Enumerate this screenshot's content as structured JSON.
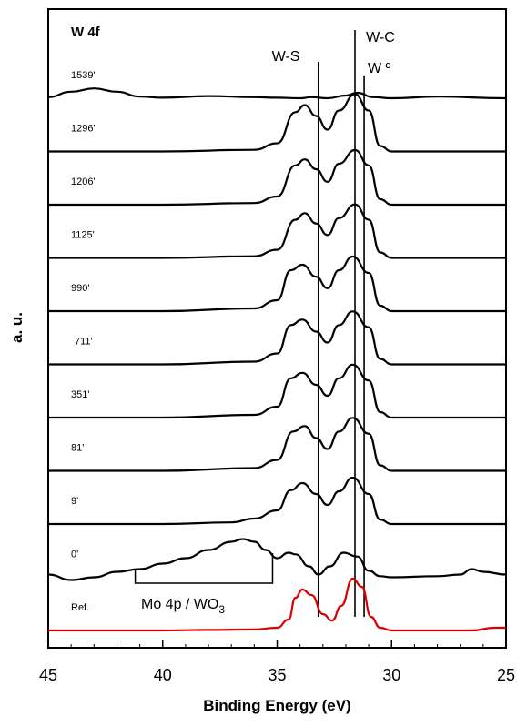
{
  "chart_data": {
    "type": "line",
    "title": "W 4f",
    "xlabel": "Binding Energy (eV)",
    "ylabel": "a. u.",
    "xlim": [
      45,
      25
    ],
    "x_reversed": true,
    "xticks": [
      45,
      40,
      35,
      30,
      25
    ],
    "y_ticks_shown": false,
    "grid": false,
    "reference_lines": [
      {
        "label": "W-S",
        "x": 33.2
      },
      {
        "label": "W-C",
        "x": 31.6
      },
      {
        "label": "W º",
        "x": 31.2
      }
    ],
    "bracket_annotation": {
      "label_main": "Mo 4p / WO",
      "label_sub": "3",
      "x_range": [
        41.2,
        35.2
      ]
    },
    "series": [
      {
        "name": "1539'",
        "color": "#000000",
        "offset": 10,
        "points": [
          [
            45,
            0.02
          ],
          [
            44,
            0.12
          ],
          [
            43,
            0.18
          ],
          [
            42,
            0.12
          ],
          [
            41,
            0.03
          ],
          [
            40,
            0.01
          ],
          [
            38,
            0.04
          ],
          [
            36,
            0.02
          ],
          [
            35,
            0.01
          ],
          [
            34,
            0.0
          ],
          [
            33.5,
            0.02
          ],
          [
            32.8,
            0.0
          ],
          [
            32,
            0.05
          ],
          [
            31.5,
            0.1
          ],
          [
            30.8,
            0.02
          ],
          [
            30,
            0.0
          ],
          [
            28,
            0.03
          ],
          [
            25,
            0.0
          ]
        ]
      },
      {
        "name": "1296'",
        "color": "#000000",
        "offset": 9,
        "points": [
          [
            45,
            0.0
          ],
          [
            40,
            0.0
          ],
          [
            36,
            0.03
          ],
          [
            35,
            0.15
          ],
          [
            34.2,
            0.72
          ],
          [
            33.8,
            0.85
          ],
          [
            33.3,
            0.65
          ],
          [
            32.8,
            0.4
          ],
          [
            32.3,
            0.75
          ],
          [
            31.6,
            1.05
          ],
          [
            31.0,
            0.75
          ],
          [
            30.5,
            0.1
          ],
          [
            30,
            0.0
          ],
          [
            25,
            0.0
          ]
        ]
      },
      {
        "name": "1206'",
        "color": "#000000",
        "offset": 8,
        "points": [
          [
            45,
            0.0
          ],
          [
            40,
            0.0
          ],
          [
            36,
            0.03
          ],
          [
            35,
            0.15
          ],
          [
            34.2,
            0.72
          ],
          [
            33.8,
            0.83
          ],
          [
            33.3,
            0.65
          ],
          [
            32.8,
            0.42
          ],
          [
            32.3,
            0.75
          ],
          [
            31.6,
            1.0
          ],
          [
            31.0,
            0.72
          ],
          [
            30.5,
            0.1
          ],
          [
            30,
            0.0
          ],
          [
            25,
            0.0
          ]
        ]
      },
      {
        "name": "1125'",
        "color": "#000000",
        "offset": 7,
        "points": [
          [
            45,
            0.0
          ],
          [
            40,
            0.0
          ],
          [
            36,
            0.03
          ],
          [
            35,
            0.15
          ],
          [
            34.2,
            0.7
          ],
          [
            33.8,
            0.82
          ],
          [
            33.3,
            0.63
          ],
          [
            32.8,
            0.42
          ],
          [
            32.3,
            0.73
          ],
          [
            31.6,
            0.98
          ],
          [
            31.0,
            0.7
          ],
          [
            30.5,
            0.1
          ],
          [
            30,
            0.0
          ],
          [
            25,
            0.0
          ]
        ]
      },
      {
        "name": "990'",
        "color": "#000000",
        "offset": 6,
        "points": [
          [
            45,
            0.0
          ],
          [
            40,
            0.0
          ],
          [
            36,
            0.05
          ],
          [
            35,
            0.2
          ],
          [
            34.4,
            0.75
          ],
          [
            33.9,
            0.85
          ],
          [
            33.3,
            0.63
          ],
          [
            32.8,
            0.42
          ],
          [
            32.3,
            0.75
          ],
          [
            31.7,
            1.0
          ],
          [
            31.0,
            0.7
          ],
          [
            30.5,
            0.1
          ],
          [
            30,
            0.0
          ],
          [
            25,
            0.0
          ]
        ]
      },
      {
        "name": "711'",
        "color": "#000000",
        "offset": 5,
        "points": [
          [
            45,
            0.0
          ],
          [
            40,
            0.0
          ],
          [
            36,
            0.05
          ],
          [
            35,
            0.2
          ],
          [
            34.4,
            0.72
          ],
          [
            33.9,
            0.82
          ],
          [
            33.3,
            0.6
          ],
          [
            32.8,
            0.4
          ],
          [
            32.3,
            0.72
          ],
          [
            31.7,
            0.97
          ],
          [
            31.0,
            0.68
          ],
          [
            30.5,
            0.1
          ],
          [
            30,
            0.0
          ],
          [
            25,
            0.0
          ]
        ]
      },
      {
        "name": "351'",
        "color": "#000000",
        "offset": 4,
        "points": [
          [
            45,
            0.0
          ],
          [
            40,
            0.0
          ],
          [
            36,
            0.05
          ],
          [
            35,
            0.2
          ],
          [
            34.4,
            0.72
          ],
          [
            33.9,
            0.82
          ],
          [
            33.3,
            0.6
          ],
          [
            32.8,
            0.4
          ],
          [
            32.3,
            0.72
          ],
          [
            31.7,
            0.97
          ],
          [
            31.0,
            0.68
          ],
          [
            30.5,
            0.1
          ],
          [
            30,
            0.0
          ],
          [
            25,
            0.0
          ]
        ]
      },
      {
        "name": "81'",
        "color": "#000000",
        "offset": 3,
        "points": [
          [
            45,
            0.0
          ],
          [
            40,
            0.0
          ],
          [
            36,
            0.05
          ],
          [
            35,
            0.2
          ],
          [
            34.3,
            0.72
          ],
          [
            33.8,
            0.82
          ],
          [
            33.3,
            0.6
          ],
          [
            32.8,
            0.4
          ],
          [
            32.3,
            0.72
          ],
          [
            31.7,
            0.97
          ],
          [
            31.0,
            0.68
          ],
          [
            30.5,
            0.1
          ],
          [
            30,
            0.0
          ],
          [
            25,
            0.0
          ]
        ]
      },
      {
        "name": "9'",
        "color": "#000000",
        "offset": 2,
        "points": [
          [
            45,
            0.0
          ],
          [
            40,
            0.0
          ],
          [
            37,
            0.03
          ],
          [
            36,
            0.1
          ],
          [
            35,
            0.25
          ],
          [
            34.4,
            0.62
          ],
          [
            33.9,
            0.75
          ],
          [
            33.3,
            0.55
          ],
          [
            32.8,
            0.35
          ],
          [
            32.3,
            0.6
          ],
          [
            31.7,
            0.85
          ],
          [
            31.0,
            0.55
          ],
          [
            30.5,
            0.08
          ],
          [
            30,
            0.0
          ],
          [
            25,
            0.0
          ]
        ]
      },
      {
        "name": "0'",
        "color": "#000000",
        "offset": 1,
        "points": [
          [
            45,
            0.05
          ],
          [
            44,
            -0.05
          ],
          [
            43,
            0.0
          ],
          [
            42,
            0.1
          ],
          [
            41,
            0.15
          ],
          [
            40,
            0.25
          ],
          [
            39,
            0.35
          ],
          [
            38,
            0.5
          ],
          [
            37,
            0.65
          ],
          [
            36.5,
            0.7
          ],
          [
            36,
            0.65
          ],
          [
            35.5,
            0.5
          ],
          [
            35,
            0.35
          ],
          [
            34.5,
            0.45
          ],
          [
            34.2,
            0.42
          ],
          [
            33.6,
            0.2
          ],
          [
            33.2,
            0.05
          ],
          [
            32.7,
            0.2
          ],
          [
            32.1,
            0.45
          ],
          [
            31.5,
            0.38
          ],
          [
            31,
            0.12
          ],
          [
            30.5,
            0.02
          ],
          [
            30,
            0.0
          ],
          [
            28,
            0.02
          ],
          [
            27,
            0.05
          ],
          [
            26.5,
            0.15
          ],
          [
            26,
            0.1
          ],
          [
            25,
            0.05
          ]
        ]
      },
      {
        "name": "Ref.",
        "color": "#dd0000",
        "offset": 0,
        "points": [
          [
            45,
            0.0
          ],
          [
            40,
            0.0
          ],
          [
            38,
            0.01
          ],
          [
            36,
            0.02
          ],
          [
            35,
            0.05
          ],
          [
            34.5,
            0.2
          ],
          [
            34.2,
            0.6
          ],
          [
            33.9,
            0.75
          ],
          [
            33.5,
            0.65
          ],
          [
            33.0,
            0.3
          ],
          [
            32.6,
            0.18
          ],
          [
            32.2,
            0.45
          ],
          [
            31.7,
            0.95
          ],
          [
            31.3,
            0.8
          ],
          [
            30.9,
            0.25
          ],
          [
            30.5,
            0.05
          ],
          [
            30,
            0.0
          ],
          [
            28,
            0.0
          ],
          [
            26.5,
            0.0
          ],
          [
            25.5,
            0.05
          ],
          [
            25,
            0.05
          ]
        ]
      }
    ]
  }
}
